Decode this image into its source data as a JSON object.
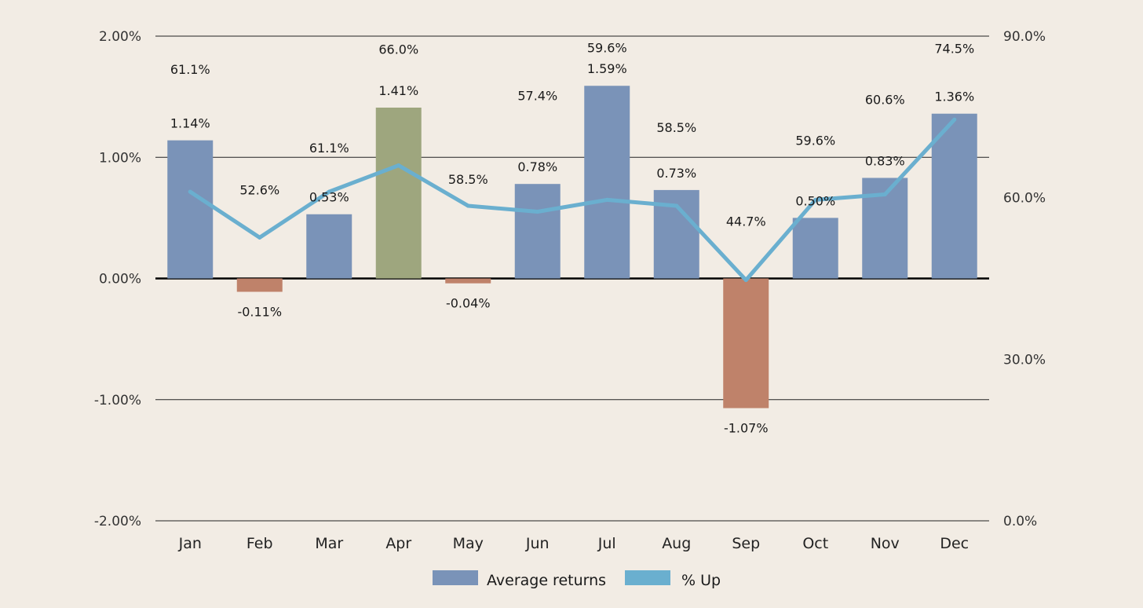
{
  "chart_data": {
    "type": "bar",
    "categories": [
      "Jan",
      "Feb",
      "Mar",
      "Apr",
      "May",
      "Jun",
      "Jul",
      "Aug",
      "Sep",
      "Oct",
      "Nov",
      "Dec"
    ],
    "series": [
      {
        "name": "Average returns",
        "type": "bar",
        "axis": "left",
        "values": [
          1.14,
          -0.11,
          0.53,
          1.41,
          -0.04,
          0.78,
          1.59,
          0.73,
          -1.07,
          0.5,
          0.83,
          1.36
        ],
        "labels": [
          "1.14%",
          "-0.11%",
          "0.53%",
          "1.41%",
          "-0.04%",
          "0.78%",
          "1.59%",
          "0.73%",
          "-1.07%",
          "0.50%",
          "0.83%",
          "1.36%"
        ]
      },
      {
        "name": "% Up",
        "type": "line",
        "axis": "right",
        "values": [
          61.1,
          52.6,
          61.1,
          66.0,
          58.5,
          57.4,
          59.6,
          58.5,
          44.7,
          59.6,
          60.6,
          74.5
        ],
        "labels": [
          "61.1%",
          "52.6%",
          "61.1%",
          "66.0%",
          "58.5%",
          "57.4%",
          "59.6%",
          "58.5%",
          "44.7%",
          "59.6%",
          "60.6%",
          "74.5%"
        ]
      }
    ],
    "y_left": {
      "lim": [
        -2.0,
        2.0
      ],
      "ticks": [
        2.0,
        1.0,
        0.0,
        -1.0,
        -2.0
      ],
      "tick_labels": [
        "2.00%",
        "1.00%",
        "0.00%",
        "-1.00%",
        "-2.00%"
      ]
    },
    "y_right": {
      "lim": [
        0,
        90
      ],
      "ticks": [
        90,
        60,
        30,
        0
      ],
      "tick_labels": [
        "90.0%",
        "60.0%",
        "30.0%",
        "0.0%"
      ]
    },
    "grid": true,
    "legend": "bottom-center",
    "colors": {
      "bar_positive": "#7a93b8",
      "bar_negative": "#bf826a",
      "bar_highlight": "#9ea67e",
      "line": "#6aafcf",
      "grid": "#222222",
      "zero_line": "#000000"
    },
    "highlight_index": 3,
    "title": "",
    "xlabel": "",
    "ylabel": ""
  }
}
